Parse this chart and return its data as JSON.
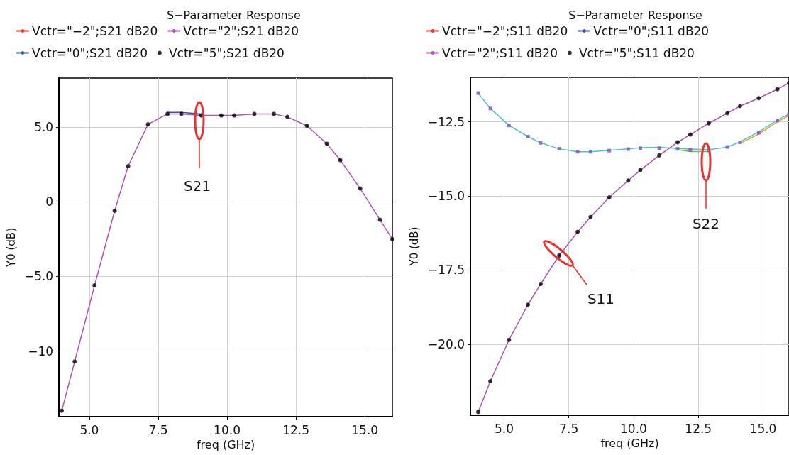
{
  "chart_data": [
    {
      "type": "line",
      "title": "S−Parameter Response",
      "xlabel": "freq (GHz)",
      "ylabel": "Y0 (dB)",
      "legend": "top",
      "grid": true,
      "line_style": "solid",
      "xlim": [
        3.9,
        16.0
      ],
      "xticks": [
        {
          "value": 5,
          "label": "5.0"
        },
        {
          "value": 7.5,
          "label": "7.5"
        },
        {
          "value": 10,
          "label": "10.0"
        },
        {
          "value": 12.5,
          "label": "12.5"
        },
        {
          "value": 15,
          "label": "15.0"
        }
      ],
      "ylim": [
        -14.4,
        8.3
      ],
      "yticks": [
        {
          "value": -10,
          "label": "−10"
        },
        {
          "value": -5,
          "label": "−5.0"
        },
        0,
        {
          "value": 5,
          "label": "5.0"
        }
      ],
      "x": [
        4.0,
        4.47,
        5.19,
        5.92,
        6.41,
        7.13,
        7.84,
        8.34,
        9.06,
        9.79,
        10.26,
        10.99,
        11.7,
        12.19,
        12.9,
        13.62,
        14.11,
        14.83,
        15.55,
        16.0
      ],
      "annotations": [
        "S21"
      ],
      "series": [
        {
          "name": "Vctr=\"−2\";S21 dB20",
          "color": "#e8322d",
          "marker": "none",
          "values": [
            null,
            null,
            null,
            null,
            null,
            null,
            null,
            null,
            null,
            null,
            null,
            null,
            null,
            null,
            null,
            null,
            null,
            null,
            null,
            null
          ]
        },
        {
          "name": "Vctr=\"2\";S21 dB20",
          "color": "#b050b8",
          "marker": "none",
          "values": [
            -14.0,
            -10.7,
            -5.6,
            -0.6,
            2.4,
            5.2,
            5.9,
            5.9,
            5.8,
            5.8,
            5.8,
            5.9,
            5.9,
            5.7,
            5.1,
            3.9,
            2.8,
            0.9,
            -1.2,
            -2.5
          ]
        },
        {
          "name": "Vctr=\"0\";S21 dB20",
          "color": "#3d55a8",
          "marker": "none",
          "values": [
            null,
            null,
            null,
            null,
            null,
            null,
            6.0,
            6.0,
            5.9,
            null,
            null,
            null,
            null,
            null,
            null,
            null,
            null,
            null,
            null,
            null
          ]
        },
        {
          "name": "Vctr=\"5\";S21 dB20",
          "type": "scatter",
          "color": "#000000",
          "marker": "circle",
          "values": [
            -14.0,
            -10.7,
            -5.6,
            -0.6,
            2.4,
            5.2,
            5.9,
            5.9,
            5.8,
            5.8,
            5.8,
            5.9,
            5.9,
            5.7,
            5.1,
            3.9,
            2.8,
            0.9,
            -1.2,
            -2.5
          ]
        }
      ]
    },
    {
      "type": "line",
      "title": "S−Parameter Response",
      "xlabel": "freq (GHz)",
      "ylabel": "Y0 (dB)",
      "legend": "top",
      "grid": true,
      "line_style": "solid",
      "xlim": [
        3.7,
        16.0
      ],
      "xticks": [
        {
          "value": 5,
          "label": "5.0"
        },
        {
          "value": 7.5,
          "label": "7.5"
        },
        {
          "value": 10,
          "label": "10.0"
        },
        {
          "value": 12.5,
          "label": "12.5"
        },
        {
          "value": 15,
          "label": "15.0"
        }
      ],
      "ylim": [
        -22.4,
        -11.0
      ],
      "yticks": [
        {
          "value": -20,
          "label": "−20.0"
        },
        {
          "value": -17.5,
          "label": "−17.5"
        },
        {
          "value": -15,
          "label": "−15.0"
        },
        {
          "value": -12.5,
          "label": "−12.5"
        }
      ],
      "x": [
        4.0,
        4.47,
        5.19,
        5.92,
        6.41,
        7.13,
        7.84,
        8.34,
        9.06,
        9.79,
        10.26,
        10.99,
        11.7,
        12.19,
        12.9,
        13.62,
        14.11,
        14.83,
        15.55,
        16.0
      ],
      "annotations": [
        "S22",
        "S11"
      ],
      "series": [
        {
          "color": "#4dc3cf",
          "marker": "none",
          "values": [
            -11.53,
            -12.05,
            -12.62,
            -13.0,
            -13.21,
            -13.41,
            -13.51,
            -13.51,
            -13.46,
            -13.41,
            -13.37,
            -13.36,
            -13.4,
            -13.42,
            -13.44,
            -13.35,
            -13.18,
            -12.84,
            -12.44,
            -12.24
          ]
        },
        {
          "color": "#72bf44",
          "marker": "none",
          "values": [
            null,
            null,
            null,
            null,
            null,
            null,
            null,
            null,
            null,
            null,
            null,
            null,
            -13.44,
            -13.5,
            -13.5,
            null,
            null,
            null,
            null,
            null
          ]
        },
        {
          "color": "#f0a236",
          "marker": "none",
          "values": [
            null,
            null,
            null,
            null,
            null,
            null,
            null,
            null,
            null,
            null,
            null,
            null,
            null,
            null,
            null,
            null,
            -13.23,
            -12.91,
            -12.5,
            -12.29
          ]
        },
        {
          "type": "scatter",
          "color": "#7a55b5",
          "marker": "square",
          "values": [
            -11.53,
            -12.05,
            -12.62,
            -13.0,
            -13.21,
            -13.41,
            -13.51,
            -13.51,
            -13.47,
            -13.42,
            -13.39,
            -13.39,
            -13.41,
            -13.45,
            -13.46,
            -13.35,
            -13.19,
            -12.87,
            -12.46,
            -12.25
          ]
        },
        {
          "name": "Vctr=\"−2\";S11 dB20",
          "color": "#e8322d",
          "marker": "none",
          "values": [
            null,
            null,
            null,
            null,
            null,
            null,
            null,
            null,
            null,
            null,
            null,
            null,
            null,
            null,
            null,
            null,
            null,
            null,
            null,
            null
          ]
        },
        {
          "name": "Vctr=\"0\";S11 dB20",
          "color": "#3d55a8",
          "marker": "none",
          "values": [
            null,
            null,
            null,
            null,
            null,
            null,
            null,
            null,
            null,
            null,
            null,
            null,
            null,
            null,
            null,
            null,
            null,
            null,
            null,
            null
          ]
        },
        {
          "name": "Vctr=\"2\";S11 dB20",
          "color": "#b050b8",
          "marker": "none",
          "values": [
            -22.29,
            -21.25,
            -19.86,
            -18.67,
            -17.97,
            -17.01,
            -16.21,
            -15.71,
            -15.05,
            -14.48,
            -14.13,
            -13.63,
            -13.19,
            -12.93,
            -12.55,
            -12.21,
            -11.97,
            -11.7,
            -11.4,
            -11.19
          ]
        },
        {
          "name": "Vctr=\"5\";S11 dB20",
          "type": "scatter",
          "color": "#000000",
          "marker": "circle",
          "values": [
            -22.29,
            -21.25,
            -19.86,
            -18.67,
            -17.97,
            -17.01,
            -16.21,
            -15.71,
            -15.05,
            -14.48,
            -14.13,
            -13.63,
            -13.19,
            -12.93,
            -12.55,
            -12.21,
            -11.97,
            -11.7,
            -11.4,
            -11.19
          ]
        }
      ]
    }
  ]
}
